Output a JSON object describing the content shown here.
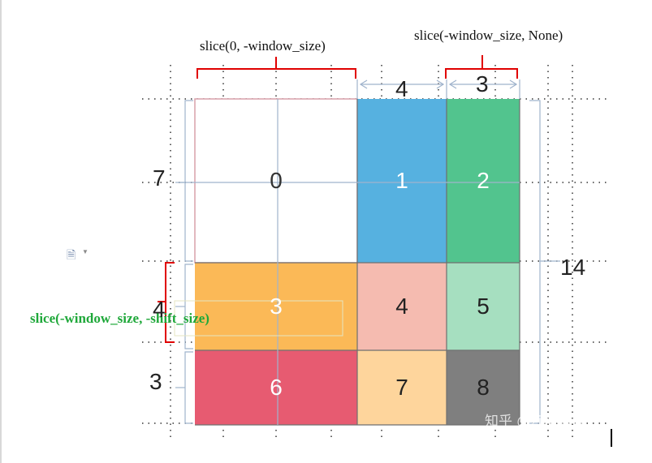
{
  "labels": {
    "top_left_slice": "slice(0, -window_size)",
    "top_right_slice": "slice(-window_size, None)",
    "left_slice": "slice(-window_size, -shift_size)"
  },
  "dimensions": {
    "top_4": "4",
    "top_3": "3",
    "left_7": "7",
    "left_4": "4",
    "left_3": "3",
    "right_14": "14"
  },
  "cells": [
    {
      "label": "0",
      "color": "#ffffff",
      "text_color": "#333333"
    },
    {
      "label": "1",
      "color": "#56b1e0",
      "text_color": "#ffffff"
    },
    {
      "label": "2",
      "color": "#52c48e",
      "text_color": "#ffffff"
    },
    {
      "label": "3",
      "color": "#fbb957",
      "text_color": "#ffffff"
    },
    {
      "label": "4",
      "color": "#f5bbb0",
      "text_color": "#222222"
    },
    {
      "label": "5",
      "color": "#a6dfc0",
      "text_color": "#222222"
    },
    {
      "label": "6",
      "color": "#e75b71",
      "text_color": "#ffffff"
    },
    {
      "label": "7",
      "color": "#fed59c",
      "text_color": "#222222"
    },
    {
      "label": "8",
      "color": "#7f7f7f",
      "text_color": "#222222"
    }
  ],
  "watermark": "知乎 @zjzjxww",
  "colors": {
    "bracket_red": "#e00000",
    "guide_blue": "#9fb3cc",
    "green_text": "#1fa83a"
  }
}
